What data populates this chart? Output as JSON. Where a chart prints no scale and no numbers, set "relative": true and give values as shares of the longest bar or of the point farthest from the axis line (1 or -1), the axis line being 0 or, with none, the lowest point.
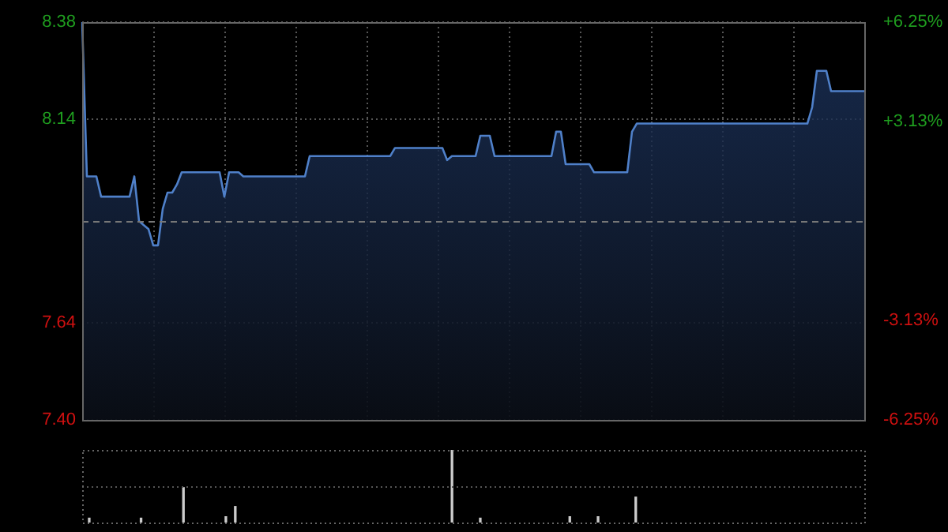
{
  "chart_data": [
    {
      "type": "area",
      "categories": [
        null,
        null,
        null,
        null,
        null,
        null,
        null,
        null,
        null,
        null,
        null,
        null,
        null,
        null,
        null,
        null,
        null,
        null,
        null,
        null,
        null,
        null,
        null,
        null,
        null,
        null,
        null,
        null,
        null,
        null,
        null,
        null,
        null,
        null,
        null,
        null,
        null,
        null,
        null,
        null,
        null,
        null,
        null,
        null,
        null,
        null,
        null,
        null,
        null,
        null,
        null,
        null,
        null,
        null,
        null,
        null,
        null,
        null,
        null,
        null,
        null,
        null,
        null,
        null,
        null,
        null,
        null,
        null,
        null,
        null,
        null,
        null,
        null,
        null,
        null,
        null,
        null,
        null,
        null,
        null,
        null,
        null,
        null,
        null,
        null,
        null,
        null,
        null,
        null,
        null,
        null,
        null,
        null,
        null,
        null,
        null,
        null,
        null,
        null,
        null,
        null,
        null,
        null,
        null,
        null,
        null,
        null,
        null,
        null,
        null,
        null,
        null,
        null,
        null,
        null,
        null,
        null,
        null,
        null,
        null,
        null,
        null,
        null,
        null,
        null,
        null,
        null,
        null,
        null,
        null,
        null,
        null,
        null,
        null,
        null,
        null,
        null,
        null,
        null,
        null,
        null,
        null,
        null,
        null,
        null,
        null,
        null,
        null,
        null,
        null,
        null,
        null,
        null,
        null,
        null,
        null,
        null,
        null,
        null,
        null,
        null,
        null,
        null,
        null,
        null,
        null
      ],
      "series": [
        {
          "color": "#4f80c9",
          "values": [
            8.38,
            8.0,
            8.0,
            8.0,
            7.95,
            7.95,
            7.95,
            7.95,
            7.95,
            7.95,
            7.95,
            8.0,
            7.89,
            7.88,
            7.87,
            7.83,
            7.83,
            7.92,
            7.96,
            7.96,
            7.98,
            8.01,
            8.01,
            8.01,
            8.01,
            8.01,
            8.01,
            8.01,
            8.01,
            8.01,
            7.95,
            8.01,
            8.01,
            8.01,
            8.0,
            8.0,
            8.0,
            8.0,
            8.0,
            8.0,
            8.0,
            8.0,
            8.0,
            8.0,
            8.0,
            8.0,
            8.0,
            8.0,
            8.05,
            8.05,
            8.05,
            8.05,
            8.05,
            8.05,
            8.05,
            8.05,
            8.05,
            8.05,
            8.05,
            8.05,
            8.05,
            8.05,
            8.05,
            8.05,
            8.05,
            8.05,
            8.07,
            8.07,
            8.07,
            8.07,
            8.07,
            8.07,
            8.07,
            8.07,
            8.07,
            8.07,
            8.07,
            8.04,
            8.05,
            8.05,
            8.05,
            8.05,
            8.05,
            8.05,
            8.1,
            8.1,
            8.1,
            8.05,
            8.05,
            8.05,
            8.05,
            8.05,
            8.05,
            8.05,
            8.05,
            8.05,
            8.05,
            8.05,
            8.05,
            8.05,
            8.11,
            8.11,
            8.03,
            8.03,
            8.03,
            8.03,
            8.03,
            8.03,
            8.01,
            8.01,
            8.01,
            8.01,
            8.01,
            8.01,
            8.01,
            8.01,
            8.11,
            8.13,
            8.13,
            8.13,
            8.13,
            8.13,
            8.13,
            8.13,
            8.13,
            8.13,
            8.13,
            8.13,
            8.13,
            8.13,
            8.13,
            8.13,
            8.13,
            8.13,
            8.13,
            8.13,
            8.13,
            8.13,
            8.13,
            8.13,
            8.13,
            8.13,
            8.13,
            8.13,
            8.13,
            8.13,
            8.13,
            8.13,
            8.13,
            8.13,
            8.13,
            8.13,
            8.13,
            8.13,
            8.17,
            8.26,
            8.26,
            8.26,
            8.21,
            8.21,
            8.21,
            8.21,
            8.21,
            8.21,
            8.21,
            8.21
          ]
        }
      ],
      "ylim": [
        7.4,
        8.38
      ],
      "yticks": [
        8.38,
        8.14,
        7.64,
        {
          "value": 7.4,
          "label": "7.40"
        }
      ],
      "y2lim": [
        -6.25,
        6.25
      ],
      "y2ticks": [
        {
          "value": 6.25,
          "label": "+6.25%"
        },
        {
          "value": 3.13,
          "label": "+3.13%"
        },
        {
          "value": -3.13,
          "label": "-3.13%"
        },
        {
          "value": -6.25,
          "label": "-6.25%"
        }
      ],
      "ref_lines": [
        {
          "axis": "y",
          "value": 7.89,
          "color": "#777777",
          "line_style": "dashed"
        }
      ],
      "grid": true,
      "legend": false
    },
    {
      "type": "bar",
      "relative": true,
      "categories": [
        null,
        null,
        null,
        null,
        null,
        null,
        null,
        null,
        null,
        null,
        null,
        null,
        null,
        null,
        null,
        null,
        null,
        null,
        null,
        null,
        null,
        null,
        null,
        null,
        null,
        null,
        null,
        null,
        null,
        null,
        null,
        null,
        null,
        null,
        null,
        null,
        null,
        null,
        null,
        null,
        null,
        null,
        null,
        null,
        null,
        null,
        null,
        null,
        null,
        null,
        null,
        null,
        null,
        null,
        null,
        null,
        null,
        null,
        null,
        null,
        null,
        null,
        null,
        null,
        null,
        null,
        null,
        null,
        null,
        null,
        null,
        null,
        null,
        null,
        null,
        null,
        null,
        null,
        null,
        null,
        null,
        null,
        null,
        null,
        null,
        null,
        null,
        null,
        null,
        null,
        null,
        null,
        null,
        null,
        null,
        null,
        null,
        null,
        null,
        null,
        null,
        null,
        null,
        null,
        null,
        null,
        null,
        null,
        null,
        null,
        null,
        null,
        null,
        null,
        null,
        null,
        null,
        null,
        null,
        null,
        null,
        null,
        null,
        null,
        null,
        null,
        null,
        null,
        null,
        null,
        null,
        null,
        null,
        null,
        null,
        null,
        null,
        null,
        null,
        null,
        null,
        null,
        null,
        null,
        null,
        null,
        null,
        null,
        null,
        null,
        null,
        null,
        null,
        null,
        null,
        null,
        null,
        null,
        null,
        null,
        null,
        null,
        null,
        null,
        null,
        null
      ],
      "color": "#cccccc",
      "values": [
        null,
        0.06,
        null,
        null,
        null,
        null,
        null,
        null,
        null,
        null,
        null,
        null,
        0.06,
        null,
        null,
        null,
        null,
        null,
        null,
        null,
        null,
        0.48,
        null,
        null,
        null,
        null,
        null,
        null,
        null,
        null,
        0.08,
        null,
        0.22,
        null,
        null,
        null,
        null,
        null,
        null,
        null,
        null,
        null,
        null,
        null,
        null,
        null,
        null,
        null,
        null,
        null,
        null,
        null,
        null,
        null,
        null,
        null,
        null,
        null,
        null,
        null,
        null,
        null,
        null,
        null,
        null,
        null,
        null,
        null,
        null,
        null,
        null,
        null,
        null,
        null,
        null,
        null,
        null,
        null,
        1,
        null,
        null,
        null,
        null,
        null,
        0.06,
        null,
        null,
        null,
        null,
        null,
        null,
        null,
        null,
        null,
        null,
        null,
        null,
        null,
        null,
        null,
        null,
        null,
        null,
        0.08,
        null,
        null,
        null,
        null,
        null,
        0.08,
        null,
        null,
        null,
        null,
        null,
        null,
        null,
        0.35,
        null,
        null,
        null,
        null,
        null,
        null,
        null,
        null,
        null,
        null,
        null,
        null,
        null,
        null,
        null,
        null,
        null,
        null,
        null,
        null,
        null,
        null,
        null,
        null,
        null,
        null,
        null,
        null,
        null,
        null,
        null,
        null,
        null,
        null,
        null,
        null,
        null,
        null,
        null,
        null,
        null,
        null,
        null,
        null,
        null,
        null,
        null,
        null
      ],
      "ref_lines": [
        {
          "axis": "y",
          "value": 0.5,
          "color": "#555555",
          "line_style": "dotted"
        }
      ],
      "legend": false
    }
  ]
}
